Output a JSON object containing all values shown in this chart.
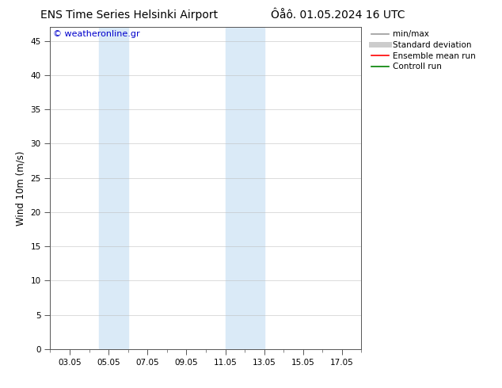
{
  "title_left": "ENS Time Series Helsinki Airport",
  "title_right": "Ôåô. 01.05.2024 16 UTC",
  "ylabel": "Wind 10m (m/s)",
  "watermark": "© weatheronline.gr",
  "watermark_color": "#0000cc",
  "ylim": [
    0,
    47
  ],
  "yticks": [
    0,
    5,
    10,
    15,
    20,
    25,
    30,
    35,
    40,
    45
  ],
  "background_color": "#ffffff",
  "plot_bg_color": "#ffffff",
  "shaded_regions": [
    {
      "xstart": 4.5,
      "xend": 6.0,
      "color": "#daeaf7"
    },
    {
      "xstart": 11.0,
      "xend": 13.0,
      "color": "#daeaf7"
    }
  ],
  "xtick_labels": [
    "03.05",
    "05.05",
    "07.05",
    "09.05",
    "11.05",
    "13.05",
    "15.05",
    "17.05"
  ],
  "xtick_positions": [
    3,
    5,
    7,
    9,
    11,
    13,
    15,
    17
  ],
  "xlim": [
    2.0,
    18.0
  ],
  "legend_entries": [
    {
      "label": "min/max",
      "color": "#999999",
      "lw": 1.2,
      "style": "solid"
    },
    {
      "label": "Standard deviation",
      "color": "#cccccc",
      "lw": 5,
      "style": "solid"
    },
    {
      "label": "Ensemble mean run",
      "color": "#ff0000",
      "lw": 1.2,
      "style": "solid"
    },
    {
      "label": "Controll run",
      "color": "#008000",
      "lw": 1.2,
      "style": "solid"
    }
  ],
  "title_fontsize": 10,
  "tick_fontsize": 7.5,
  "label_fontsize": 8.5,
  "watermark_fontsize": 8,
  "legend_fontsize": 7.5,
  "grid_color": "#bbbbbb",
  "grid_alpha": 0.6,
  "spine_color": "#555555"
}
